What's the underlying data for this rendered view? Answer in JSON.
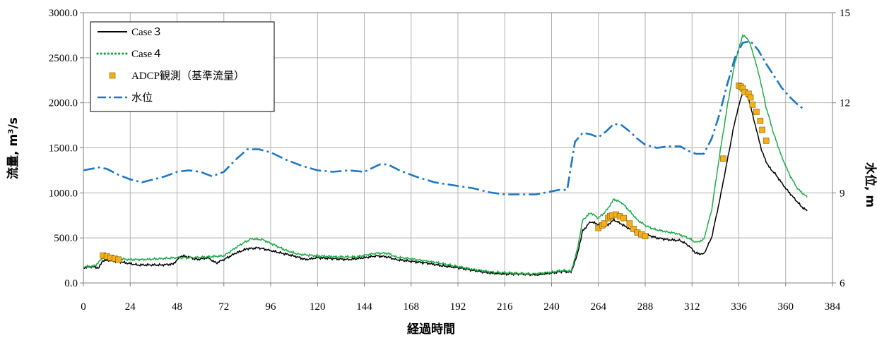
{
  "chart_data": {
    "type": "line",
    "xlabel": "経過時間",
    "ylabel_left": "流量, m³/s",
    "ylabel_right": "水位, m",
    "x_range": [
      0,
      384
    ],
    "x_ticks": [
      0,
      24,
      48,
      72,
      96,
      120,
      144,
      168,
      192,
      216,
      240,
      264,
      288,
      312,
      336,
      360,
      384
    ],
    "y_left_range": [
      0,
      3000
    ],
    "y_left_ticks": [
      "0.0",
      "500.0",
      "1000.0",
      "1500.0",
      "2000.0",
      "2500.0",
      "3000.0"
    ],
    "y_right_range": [
      6,
      15
    ],
    "y_right_ticks": [
      6,
      9,
      12,
      15
    ],
    "grid": true,
    "legend_position": "top-left",
    "legend": [
      {
        "label": "Case３",
        "color": "#000000",
        "style": "solid"
      },
      {
        "label": "Case４",
        "color": "#1faa4a",
        "style": "dotted"
      },
      {
        "label": "ADCP観測（基準流量）",
        "color": "#f5b019",
        "style": "marker"
      },
      {
        "label": "水位",
        "color": "#1f77c4",
        "style": "dashdot"
      }
    ],
    "series": [
      {
        "name": "Case３",
        "axis": "left",
        "color": "#000000",
        "points": [
          [
            0,
            170
          ],
          [
            4,
            180
          ],
          [
            8,
            170
          ],
          [
            10,
            250
          ],
          [
            14,
            250
          ],
          [
            20,
            230
          ],
          [
            28,
            200
          ],
          [
            40,
            200
          ],
          [
            46,
            210
          ],
          [
            50,
            300
          ],
          [
            54,
            290
          ],
          [
            58,
            260
          ],
          [
            64,
            280
          ],
          [
            68,
            220
          ],
          [
            72,
            260
          ],
          [
            78,
            330
          ],
          [
            84,
            380
          ],
          [
            90,
            390
          ],
          [
            96,
            360
          ],
          [
            102,
            330
          ],
          [
            108,
            300
          ],
          [
            114,
            260
          ],
          [
            120,
            280
          ],
          [
            128,
            270
          ],
          [
            136,
            260
          ],
          [
            144,
            280
          ],
          [
            150,
            300
          ],
          [
            156,
            290
          ],
          [
            160,
            260
          ],
          [
            168,
            240
          ],
          [
            176,
            220
          ],
          [
            184,
            190
          ],
          [
            192,
            170
          ],
          [
            200,
            140
          ],
          [
            208,
            110
          ],
          [
            216,
            100
          ],
          [
            224,
            100
          ],
          [
            232,
            90
          ],
          [
            240,
            110
          ],
          [
            246,
            130
          ],
          [
            250,
            120
          ],
          [
            253,
            300
          ],
          [
            256,
            580
          ],
          [
            260,
            680
          ],
          [
            264,
            650
          ],
          [
            268,
            630
          ],
          [
            272,
            700
          ],
          [
            276,
            650
          ],
          [
            280,
            600
          ],
          [
            284,
            560
          ],
          [
            288,
            540
          ],
          [
            294,
            500
          ],
          [
            300,
            480
          ],
          [
            306,
            470
          ],
          [
            310,
            420
          ],
          [
            314,
            330
          ],
          [
            318,
            320
          ],
          [
            322,
            500
          ],
          [
            326,
            900
          ],
          [
            330,
            1350
          ],
          [
            334,
            1800
          ],
          [
            338,
            2130
          ],
          [
            341,
            2050
          ],
          [
            345,
            1700
          ],
          [
            348,
            1450
          ],
          [
            351,
            1300
          ],
          [
            355,
            1200
          ],
          [
            360,
            1050
          ],
          [
            364,
            950
          ],
          [
            368,
            850
          ],
          [
            371,
            800
          ]
        ]
      },
      {
        "name": "Case４",
        "axis": "left",
        "color": "#1faa4a",
        "points": [
          [
            0,
            180
          ],
          [
            6,
            190
          ],
          [
            10,
            280
          ],
          [
            16,
            270
          ],
          [
            24,
            260
          ],
          [
            32,
            260
          ],
          [
            40,
            270
          ],
          [
            48,
            280
          ],
          [
            56,
            280
          ],
          [
            64,
            290
          ],
          [
            72,
            300
          ],
          [
            80,
            420
          ],
          [
            86,
            490
          ],
          [
            92,
            480
          ],
          [
            98,
            420
          ],
          [
            104,
            360
          ],
          [
            110,
            320
          ],
          [
            120,
            300
          ],
          [
            130,
            290
          ],
          [
            140,
            290
          ],
          [
            150,
            330
          ],
          [
            156,
            330
          ],
          [
            160,
            290
          ],
          [
            170,
            260
          ],
          [
            180,
            230
          ],
          [
            190,
            190
          ],
          [
            200,
            150
          ],
          [
            210,
            120
          ],
          [
            220,
            110
          ],
          [
            230,
            100
          ],
          [
            240,
            120
          ],
          [
            246,
            140
          ],
          [
            250,
            130
          ],
          [
            253,
            350
          ],
          [
            256,
            700
          ],
          [
            260,
            780
          ],
          [
            264,
            720
          ],
          [
            268,
            800
          ],
          [
            272,
            930
          ],
          [
            276,
            890
          ],
          [
            280,
            800
          ],
          [
            284,
            700
          ],
          [
            288,
            640
          ],
          [
            292,
            600
          ],
          [
            298,
            570
          ],
          [
            304,
            550
          ],
          [
            310,
            500
          ],
          [
            314,
            450
          ],
          [
            318,
            480
          ],
          [
            322,
            800
          ],
          [
            326,
            1400
          ],
          [
            330,
            1950
          ],
          [
            334,
            2450
          ],
          [
            338,
            2750
          ],
          [
            341,
            2700
          ],
          [
            344,
            2500
          ],
          [
            347,
            2250
          ],
          [
            350,
            1950
          ],
          [
            354,
            1650
          ],
          [
            358,
            1400
          ],
          [
            362,
            1200
          ],
          [
            366,
            1050
          ],
          [
            371,
            950
          ]
        ]
      },
      {
        "name": "ADCP観測（基準流量）",
        "axis": "left",
        "color": "#f5b019",
        "style": "marker",
        "points": [
          [
            10,
            305
          ],
          [
            12,
            295
          ],
          [
            14,
            280
          ],
          [
            16,
            270
          ],
          [
            18,
            260
          ],
          [
            264,
            610
          ],
          [
            266,
            640
          ],
          [
            267,
            660
          ],
          [
            269,
            720
          ],
          [
            270,
            740
          ],
          [
            271,
            750
          ],
          [
            273,
            760
          ],
          [
            275,
            740
          ],
          [
            277,
            720
          ],
          [
            280,
            660
          ],
          [
            282,
            600
          ],
          [
            284,
            560
          ],
          [
            286,
            540
          ],
          [
            288,
            520
          ],
          [
            328,
            1380
          ],
          [
            336,
            2190
          ],
          [
            337,
            2180
          ],
          [
            338,
            2160
          ],
          [
            339,
            2120
          ],
          [
            341,
            2100
          ],
          [
            342,
            2060
          ],
          [
            343,
            1980
          ],
          [
            345,
            1900
          ],
          [
            347,
            1800
          ],
          [
            348,
            1700
          ],
          [
            350,
            1580
          ]
        ]
      },
      {
        "name": "水位",
        "axis": "right",
        "color": "#1f77c4",
        "style": "dashdot",
        "points": [
          [
            0,
            9.75
          ],
          [
            8,
            9.85
          ],
          [
            12,
            9.8
          ],
          [
            18,
            9.6
          ],
          [
            24,
            9.45
          ],
          [
            30,
            9.35
          ],
          [
            36,
            9.45
          ],
          [
            42,
            9.55
          ],
          [
            48,
            9.7
          ],
          [
            54,
            9.75
          ],
          [
            60,
            9.7
          ],
          [
            66,
            9.55
          ],
          [
            72,
            9.7
          ],
          [
            78,
            10.1
          ],
          [
            84,
            10.45
          ],
          [
            90,
            10.45
          ],
          [
            96,
            10.35
          ],
          [
            104,
            10.1
          ],
          [
            112,
            9.9
          ],
          [
            120,
            9.75
          ],
          [
            128,
            9.7
          ],
          [
            136,
            9.75
          ],
          [
            144,
            9.7
          ],
          [
            152,
            9.95
          ],
          [
            156,
            9.95
          ],
          [
            162,
            9.75
          ],
          [
            170,
            9.55
          ],
          [
            180,
            9.35
          ],
          [
            190,
            9.25
          ],
          [
            200,
            9.15
          ],
          [
            208,
            9.02
          ],
          [
            216,
            8.95
          ],
          [
            224,
            8.95
          ],
          [
            232,
            8.95
          ],
          [
            240,
            9.05
          ],
          [
            244,
            9.1
          ],
          [
            248,
            9.1
          ],
          [
            250,
            9.9
          ],
          [
            252,
            10.7
          ],
          [
            256,
            11.0
          ],
          [
            260,
            10.95
          ],
          [
            264,
            10.85
          ],
          [
            268,
            11.05
          ],
          [
            272,
            11.3
          ],
          [
            276,
            11.25
          ],
          [
            280,
            11.05
          ],
          [
            284,
            10.8
          ],
          [
            288,
            10.6
          ],
          [
            294,
            10.5
          ],
          [
            300,
            10.55
          ],
          [
            306,
            10.55
          ],
          [
            310,
            10.4
          ],
          [
            314,
            10.3
          ],
          [
            318,
            10.3
          ],
          [
            322,
            10.8
          ],
          [
            326,
            11.6
          ],
          [
            330,
            12.6
          ],
          [
            334,
            13.5
          ],
          [
            338,
            14.0
          ],
          [
            342,
            14.05
          ],
          [
            346,
            13.75
          ],
          [
            350,
            13.3
          ],
          [
            354,
            12.9
          ],
          [
            358,
            12.5
          ],
          [
            362,
            12.2
          ],
          [
            366,
            11.95
          ],
          [
            369,
            11.8
          ]
        ]
      }
    ]
  }
}
